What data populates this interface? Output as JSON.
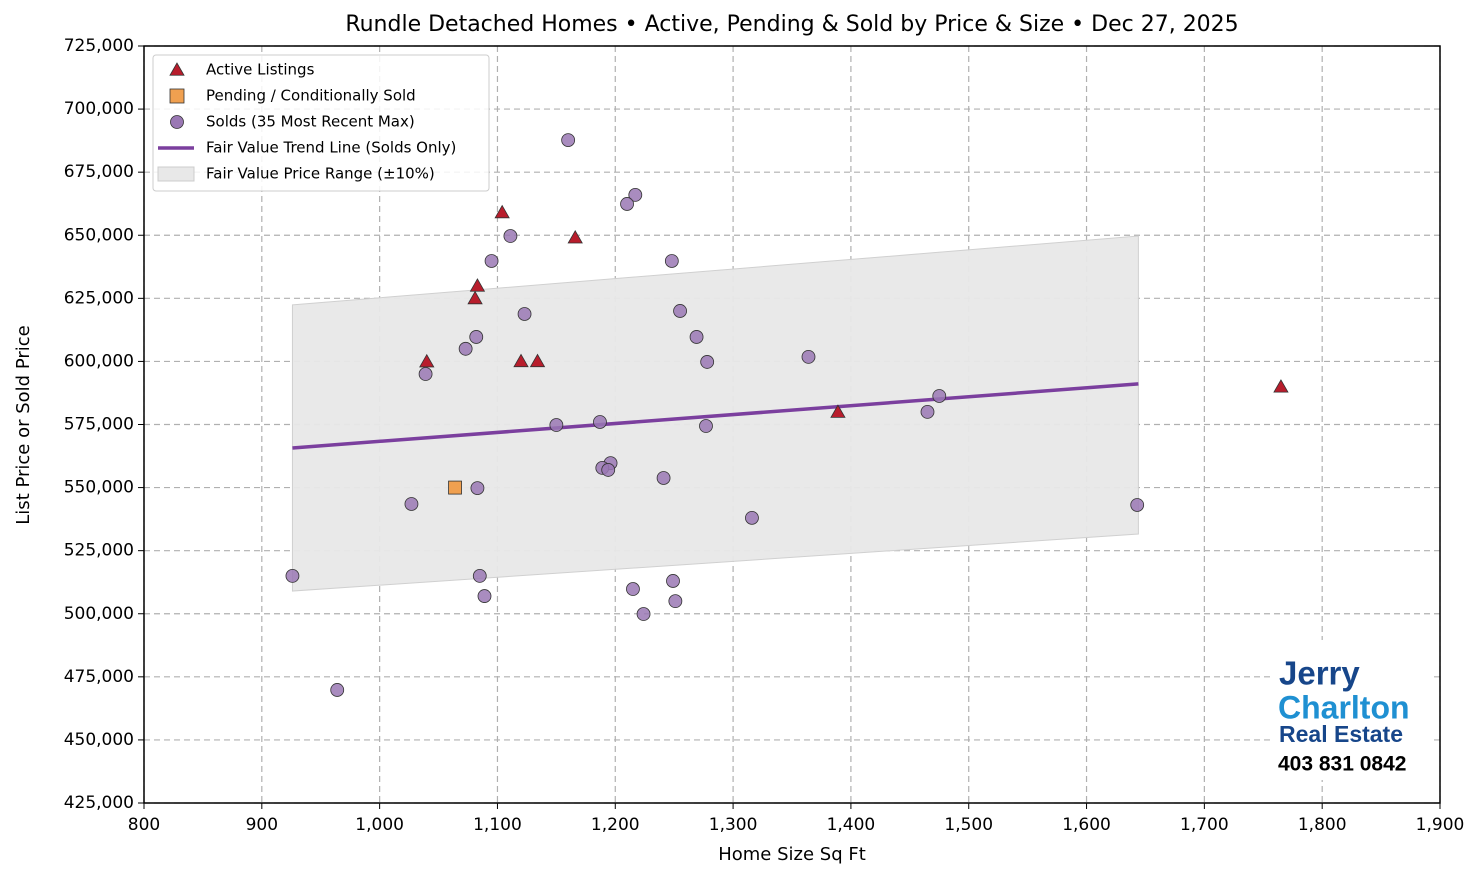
{
  "chart_data": {
    "type": "scatter",
    "title": "Rundle Detached Homes • Active, Pending & Sold by Price & Size • Dec 27, 2025",
    "x_label": "Home Size Sq Ft",
    "y_label": "List Price or Sold Price",
    "xlim": [
      800,
      1900
    ],
    "ylim": [
      425000,
      725000
    ],
    "xticks": [
      800,
      900,
      {
        "value": 1000,
        "label": "1,000"
      },
      {
        "value": 1100,
        "label": "1,100"
      },
      {
        "value": 1200,
        "label": "1,200"
      },
      {
        "value": 1300,
        "label": "1,300"
      },
      {
        "value": 1400,
        "label": "1,400"
      },
      {
        "value": 1500,
        "label": "1,500"
      },
      {
        "value": 1600,
        "label": "1,600"
      },
      {
        "value": 1700,
        "label": "1,700"
      },
      {
        "value": 1800,
        "label": "1,800"
      },
      {
        "value": 1900,
        "label": "1,900"
      }
    ],
    "yticks": [
      {
        "value": 425000,
        "label": "425,000"
      },
      {
        "value": 450000,
        "label": "450,000"
      },
      {
        "value": 475000,
        "label": "475,000"
      },
      {
        "value": 500000,
        "label": "500,000"
      },
      {
        "value": 525000,
        "label": "525,000"
      },
      {
        "value": 550000,
        "label": "550,000"
      },
      {
        "value": 575000,
        "label": "575,000"
      },
      {
        "value": 600000,
        "label": "600,000"
      },
      {
        "value": 625000,
        "label": "625,000"
      },
      {
        "value": 650000,
        "label": "650,000"
      },
      {
        "value": 675000,
        "label": "675,000"
      },
      {
        "value": 700000,
        "label": "700,000"
      },
      {
        "value": 725000,
        "label": "725,000"
      }
    ],
    "grid": true,
    "legend": "upper left",
    "series": [
      {
        "name": "Active Listings",
        "marker": "triangle",
        "color": "#b81d2c",
        "x": [
          1040,
          1104,
          1166,
          1083,
          1081,
          1120,
          1134,
          1389,
          1765
        ],
        "values": [
          599900,
          659000,
          649000,
          629900,
          624900,
          600000,
          600000,
          579900,
          589900
        ]
      },
      {
        "name": "Pending / Conditionally Sold",
        "marker": "square",
        "color": "#f0a050",
        "x": [
          1064
        ],
        "values": [
          550000
        ]
      },
      {
        "name": "Solds (35 Most Recent Max)",
        "marker": "circle",
        "color": "#9a78b4",
        "x": [
          1160,
          1217,
          1210,
          1111,
          1095,
          1248,
          1123,
          1255,
          1082,
          1073,
          1269,
          1278,
          1364,
          1039,
          1475,
          1465,
          1150,
          1187,
          1277,
          1196,
          1189,
          1194,
          1241,
          1083,
          1027,
          1643,
          1316,
          926,
          1085,
          1249,
          1215,
          1089,
          1251,
          1224,
          964
        ],
        "values": [
          687700,
          666000,
          662400,
          649700,
          639800,
          639800,
          618800,
          620000,
          609700,
          605000,
          609700,
          599800,
          601800,
          595000,
          586300,
          580000,
          574800,
          576000,
          574400,
          559700,
          557800,
          557000,
          553800,
          549800,
          543500,
          543100,
          538000,
          515000,
          515000,
          513000,
          509800,
          507000,
          505000,
          499900,
          469800
        ]
      },
      {
        "name": "Fair Value Trend Line (Solds Only)",
        "marker": "line",
        "color": "#7b3f9e",
        "x": [
          926,
          1644
        ],
        "values": [
          565700,
          591100
        ]
      },
      {
        "name": "Fair Value Price Range (±10%)",
        "marker": "band",
        "color": "#e8e8e8",
        "x": [
          926,
          1644
        ],
        "lower": [
          509000,
          531600
        ],
        "upper": [
          622400,
          649700
        ]
      }
    ]
  },
  "logo": {
    "line1": "Jerry",
    "line2": "Charlton",
    "line3": "Real Estate",
    "phone": "403 831 0842"
  }
}
